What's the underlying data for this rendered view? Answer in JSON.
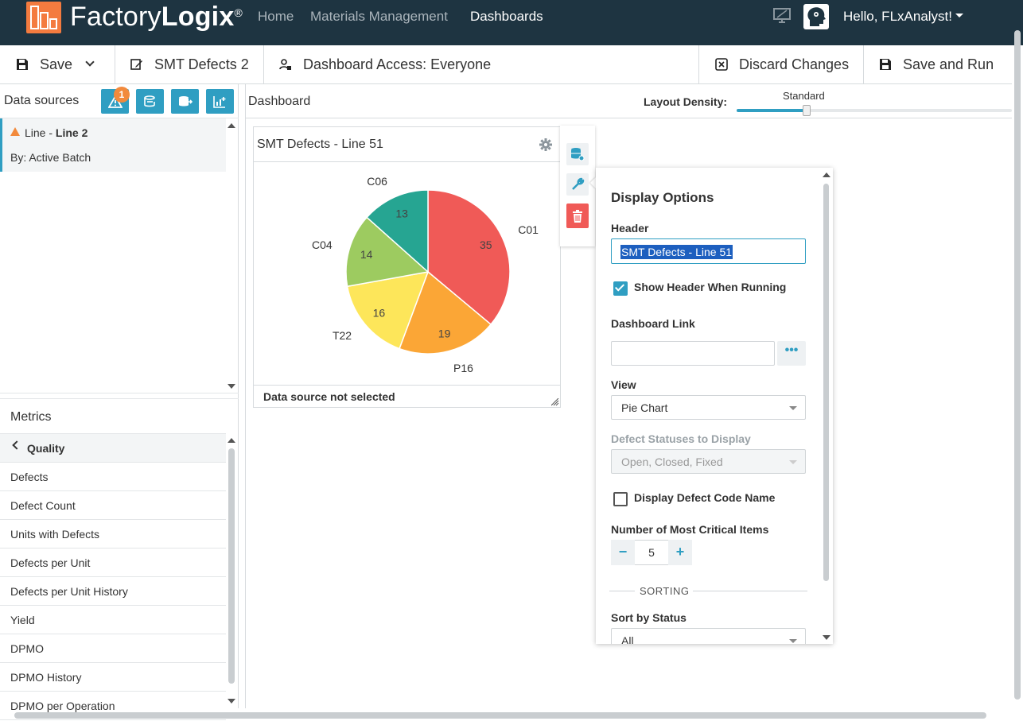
{
  "app": {
    "logo_light": "Factory",
    "logo_bold": "Logix",
    "logo_reg": "®",
    "nav": [
      "Home",
      "Materials Management",
      "Dashboards"
    ],
    "active_nav": "Dashboards",
    "greeting": "Hello, FLxAnalyst!"
  },
  "toolbar": {
    "save_label": "Save",
    "dashboard_name": "SMT Defects 2",
    "access_label": "Dashboard Access: Everyone",
    "discard_label": "Discard Changes",
    "save_run_label": "Save and Run"
  },
  "data_sources": {
    "title": "Data sources",
    "badge_count": "1",
    "item": {
      "prefix": "Line - ",
      "name": "Line 2",
      "by": "By: Active Batch"
    }
  },
  "metrics": {
    "title": "Metrics",
    "category": "Quality",
    "items": [
      "Defects",
      "Defect Count",
      "Units with Defects",
      "Defects per Unit",
      "Defects per Unit History",
      "Yield",
      "DPMO",
      "DPMO History",
      "DPMO per Operation"
    ]
  },
  "dashboard": {
    "title": "Dashboard",
    "density_label": "Layout Density:",
    "density_value": "Standard",
    "density_level": 0.25
  },
  "widget": {
    "title": "SMT Defects - Line 51",
    "footer": "Data source not selected"
  },
  "chart_data": {
    "type": "pie",
    "categories": [
      "C01",
      "P16",
      "T22",
      "C04",
      "C06"
    ],
    "values": [
      35,
      19,
      16,
      14,
      13
    ],
    "colors": [
      "#f05a57",
      "#fba636",
      "#fde65a",
      "#9dcb60",
      "#26a592"
    ],
    "legend": "none",
    "title": ""
  },
  "options": {
    "title": "Display Options",
    "header_label": "Header",
    "header_value": "SMT Defects - Line 51",
    "show_header_label": "Show Header When Running",
    "show_header_checked": true,
    "link_label": "Dashboard Link",
    "link_value": "",
    "link_btn": "•••",
    "view_label": "View",
    "view_value": "Pie Chart",
    "statuses_label": "Defect Statuses to Display",
    "statuses_value": "Open, Closed, Fixed",
    "code_name_label": "Display Defect Code Name",
    "code_name_checked": false,
    "critical_label": "Number of Most Critical Items",
    "critical_value": "5",
    "minus": "−",
    "plus": "+",
    "sorting_label": "SORTING",
    "sort_status_label": "Sort by Status",
    "sort_status_value": "All"
  }
}
